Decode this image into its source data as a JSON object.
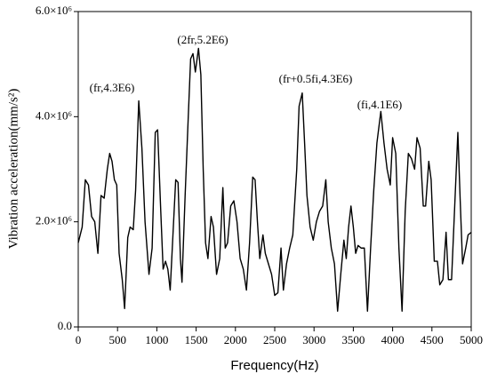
{
  "chart_data": {
    "type": "line",
    "xlabel": "Frequency(Hz)",
    "ylabel": "Vibration acceleration(mm/s²)",
    "annotations": [
      "(fr,4.3E6)",
      "(2fr,5.2E6)",
      "(fr+0.5fi,4.3E6)",
      "(fi,4.1E6)"
    ],
    "annotation_color": "#c0392b",
    "xlim": [
      0,
      5000
    ],
    "xticks": [
      0,
      500,
      1000,
      1500,
      2000,
      2500,
      3000,
      3500,
      4000,
      4500,
      5000
    ],
    "ylim": [
      0,
      6000000
    ],
    "yticks": [
      {
        "value": 0,
        "label": "0.0"
      },
      {
        "value": 2000000,
        "label": "2.0×10⁶"
      },
      {
        "value": 4000000,
        "label": "4.0×10⁶"
      },
      {
        "value": 6000000,
        "label": "6.0×10⁶"
      }
    ],
    "x": [
      0,
      50,
      90,
      130,
      170,
      210,
      250,
      290,
      330,
      370,
      400,
      430,
      460,
      490,
      520,
      560,
      590,
      630,
      660,
      700,
      730,
      770,
      810,
      850,
      900,
      940,
      980,
      1010,
      1050,
      1080,
      1110,
      1140,
      1170,
      1200,
      1240,
      1270,
      1300,
      1320,
      1360,
      1400,
      1430,
      1460,
      1490,
      1530,
      1560,
      1590,
      1620,
      1650,
      1690,
      1720,
      1760,
      1800,
      1840,
      1870,
      1900,
      1940,
      1980,
      2020,
      2060,
      2100,
      2140,
      2180,
      2220,
      2250,
      2280,
      2310,
      2350,
      2380,
      2420,
      2460,
      2500,
      2540,
      2580,
      2610,
      2650,
      2690,
      2730,
      2780,
      2810,
      2850,
      2880,
      2910,
      2950,
      2990,
      3030,
      3070,
      3110,
      3150,
      3180,
      3220,
      3260,
      3300,
      3340,
      3380,
      3410,
      3440,
      3470,
      3500,
      3530,
      3560,
      3600,
      3640,
      3680,
      3720,
      3760,
      3800,
      3850,
      3890,
      3930,
      3970,
      4000,
      4040,
      4080,
      4120,
      4160,
      4200,
      4240,
      4280,
      4310,
      4350,
      4390,
      4420,
      4460,
      4490,
      4530,
      4570,
      4600,
      4640,
      4680,
      4710,
      4750,
      4790,
      4830,
      4860,
      4890,
      4930,
      4960,
      5000
    ],
    "series": [
      {
        "color": "#000000",
        "values": [
          1600000,
          1900000,
          2800000,
          2700000,
          2100000,
          2000000,
          1400000,
          2500000,
          2450000,
          3000000,
          3300000,
          3150000,
          2800000,
          2700000,
          1400000,
          900000,
          350000,
          1700000,
          1900000,
          1850000,
          2600000,
          4300000,
          3400000,
          2000000,
          1000000,
          1500000,
          3700000,
          3750000,
          2200000,
          1100000,
          1250000,
          1100000,
          700000,
          1600000,
          2800000,
          2750000,
          1300000,
          850000,
          2500000,
          4000000,
          5100000,
          5200000,
          4850000,
          5300000,
          4800000,
          3000000,
          1600000,
          1300000,
          2100000,
          1900000,
          1000000,
          1300000,
          2650000,
          1500000,
          1600000,
          2300000,
          2400000,
          2000000,
          1300000,
          1100000,
          700000,
          1600000,
          2850000,
          2800000,
          2000000,
          1300000,
          1750000,
          1400000,
          1200000,
          1000000,
          600000,
          650000,
          1500000,
          700000,
          1200000,
          1500000,
          1750000,
          3000000,
          4200000,
          4450000,
          3500000,
          2500000,
          1900000,
          1650000,
          2000000,
          2200000,
          2300000,
          2800000,
          2000000,
          1500000,
          1200000,
          300000,
          1000000,
          1650000,
          1300000,
          1900000,
          2300000,
          1900000,
          1400000,
          1550000,
          1500000,
          1500000,
          300000,
          1500000,
          2600000,
          3500000,
          4100000,
          3500000,
          3000000,
          2700000,
          3600000,
          3300000,
          1500000,
          300000,
          2200000,
          3300000,
          3200000,
          3000000,
          3600000,
          3400000,
          2300000,
          2300000,
          3150000,
          2800000,
          1250000,
          1250000,
          800000,
          900000,
          1800000,
          900000,
          900000,
          2300000,
          3700000,
          2400000,
          1200000,
          1500000,
          1750000,
          1800000
        ]
      }
    ]
  }
}
